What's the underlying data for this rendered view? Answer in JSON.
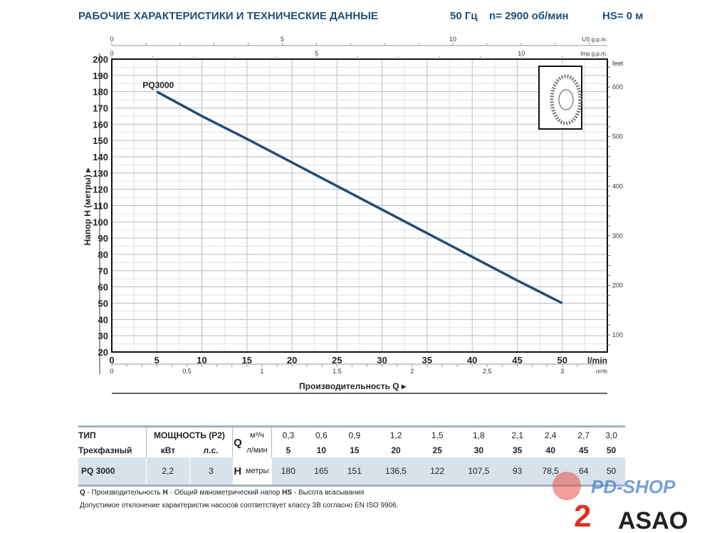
{
  "header": {
    "title": "РАБОЧИЕ ХАРАКТЕРИСТИКИ И ТЕХНИЧЕСКИЕ ДАННЫЕ",
    "frequency": "50 Гц",
    "speed": "n= 2900 об/мин",
    "suction": "HS= 0 м"
  },
  "chart_data": {
    "type": "line",
    "title": "PQ3000",
    "xlabel": "Производительность Q",
    "ylabel": "Напор H (метры)",
    "xlim": [
      0,
      55
    ],
    "ylim": [
      20,
      200
    ],
    "x_ticks": [
      0,
      5,
      10,
      15,
      20,
      25,
      30,
      35,
      40,
      45,
      50
    ],
    "x_unit": "l/min",
    "y_ticks": [
      20,
      30,
      40,
      50,
      60,
      70,
      80,
      90,
      100,
      110,
      120,
      130,
      140,
      150,
      160,
      170,
      180,
      190,
      200
    ],
    "series": [
      {
        "name": "PQ3000",
        "x": [
          5,
          10,
          15,
          20,
          25,
          30,
          35,
          40,
          45,
          50
        ],
        "y": [
          180,
          165,
          151,
          136.5,
          122,
          107.5,
          93,
          78.5,
          64,
          50
        ]
      }
    ],
    "secondary_axes": {
      "us_gpm": {
        "label": "US g.p.m.",
        "ticks": [
          0,
          5,
          10
        ]
      },
      "imp_gpm": {
        "label": "Imp g.p.m.",
        "ticks": [
          0,
          5,
          10
        ]
      },
      "m3h": {
        "label": "m³/h",
        "ticks": [
          "0",
          "0.5",
          "1",
          "1.5",
          "2",
          "2.5",
          "3"
        ]
      },
      "feet": {
        "label": "feet",
        "ticks": [
          100,
          200,
          300,
          400,
          500,
          600
        ]
      }
    },
    "grid": true,
    "colors": {
      "curve": "#1f4e79"
    }
  },
  "table": {
    "type_label": "ТИП",
    "phase_label": "Трехфазный",
    "power_label": "МОЩНОСТЬ (P2)",
    "kw_label": "кВт",
    "hp_label": "л.с.",
    "q_label": "Q",
    "m3h_label": "м³/ч",
    "lmin_label": "л/мин",
    "h_label": "H",
    "meters_label": "метры",
    "q_m3h": [
      "0,3",
      "0,6",
      "0,9",
      "1,2",
      "1,5",
      "1,8",
      "2,1",
      "2,4",
      "2,7",
      "3,0"
    ],
    "q_lmin": [
      "5",
      "10",
      "15",
      "20",
      "25",
      "30",
      "35",
      "40",
      "45",
      "50"
    ],
    "model": "PQ 3000",
    "kw": "2,2",
    "hp": "3",
    "h": [
      "180",
      "165",
      "151",
      "136,5",
      "122",
      "107,5",
      "93",
      "78,5",
      "64",
      "50"
    ]
  },
  "notes": {
    "line1_q": "Q",
    "line1_q_text": " - Производительность  ",
    "line1_h": "H",
    "line1_h_text": " - Общий манометрический напор  ",
    "line1_hs": "HS",
    "line1_hs_text": " - Высота всасывания",
    "line2": "Допустимое отклонение характеристик насосов соответствует классу 3В согласно EN ISO 9906."
  },
  "watermarks": {
    "pdshop": "PD-SHOP",
    "asao": "ASAO"
  }
}
